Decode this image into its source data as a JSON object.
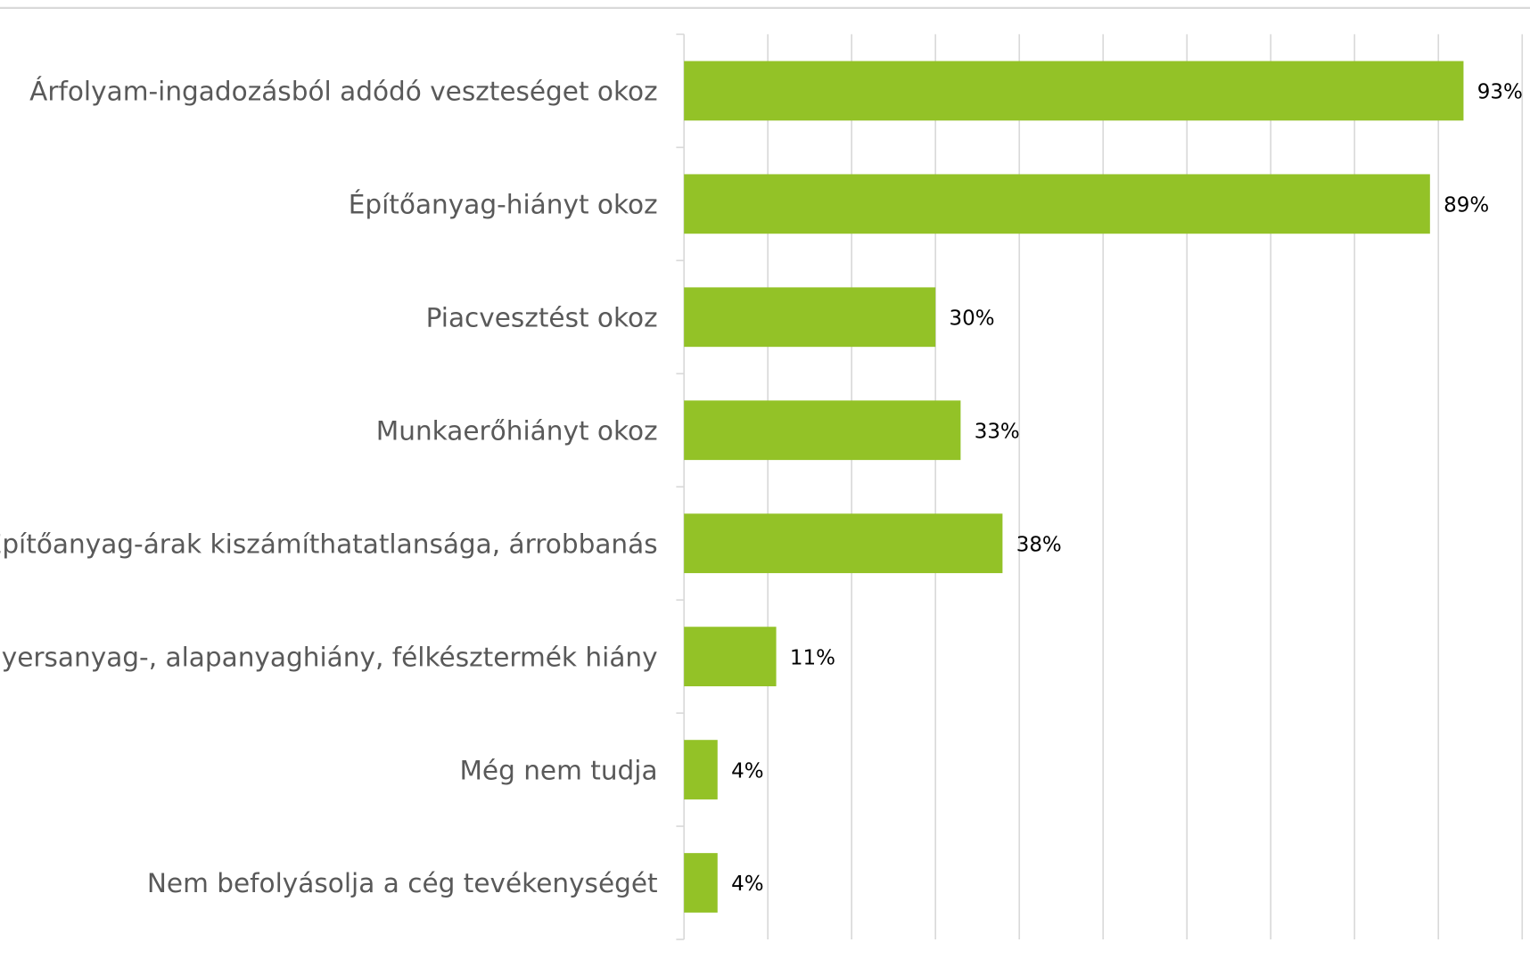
{
  "chart_data": {
    "type": "bar",
    "orientation": "horizontal",
    "categories": [
      "Árfolyam-ingadozásból adódó veszteséget okoz",
      "Építőanyag-hiányt okoz",
      "Piacvesztést okoz",
      "Munkaerőhiányt okoz",
      "Építőanyag-árak kiszámíthatatlansága, árrobbanás",
      "Nyersanyag-, alapanyaghiány, félkésztermék hiány",
      "Még nem tudja",
      "Nem befolyásolja a cég tevékenységét"
    ],
    "values": [
      93,
      89,
      30,
      33,
      38,
      11,
      4,
      4
    ],
    "value_labels": [
      "93%",
      "89%",
      "30%",
      "33%",
      "38%",
      "11%",
      "4%",
      "4%"
    ],
    "color": "#93c227",
    "xlim": [
      0,
      100
    ],
    "xticks": [
      0,
      10,
      20,
      30,
      40,
      50,
      60,
      70,
      80,
      90,
      100
    ],
    "grid": true
  }
}
